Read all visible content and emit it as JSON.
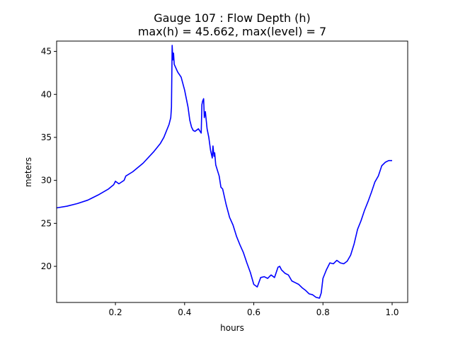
{
  "chart_data": {
    "type": "line",
    "title": "Gauge 107 : Flow Depth (h)",
    "subtitle": "max(h) =  45.662,    max(level) = 7",
    "xlabel": "hours",
    "ylabel": "meters",
    "xlim": [
      0.03,
      1.045
    ],
    "ylim": [
      15.8,
      46.2
    ],
    "xticks": [
      0.2,
      0.4,
      0.6,
      0.8,
      1.0
    ],
    "xtick_labels": [
      "0.2",
      "0.4",
      "0.6",
      "0.8",
      "1.0"
    ],
    "yticks": [
      20,
      25,
      30,
      35,
      40,
      45
    ],
    "ytick_labels": [
      "20",
      "25",
      "30",
      "35",
      "40",
      "45"
    ],
    "grid": false,
    "line_color": "#0000ff",
    "series": [
      {
        "x": [
          0.03,
          0.06,
          0.09,
          0.12,
          0.15,
          0.18,
          0.195,
          0.2,
          0.21,
          0.225,
          0.23,
          0.25,
          0.28,
          0.31,
          0.33,
          0.34,
          0.35,
          0.355,
          0.36,
          0.362,
          0.364,
          0.366,
          0.368,
          0.37,
          0.38,
          0.39,
          0.4,
          0.41,
          0.415,
          0.42,
          0.425,
          0.43,
          0.44,
          0.448,
          0.45,
          0.452,
          0.455,
          0.457,
          0.46,
          0.465,
          0.47,
          0.475,
          0.48,
          0.482,
          0.485,
          0.487,
          0.49,
          0.5,
          0.505,
          0.51,
          0.52,
          0.53,
          0.54,
          0.55,
          0.56,
          0.57,
          0.58,
          0.59,
          0.6,
          0.61,
          0.62,
          0.63,
          0.64,
          0.65,
          0.66,
          0.67,
          0.675,
          0.68,
          0.69,
          0.7,
          0.71,
          0.72,
          0.73,
          0.74,
          0.75,
          0.76,
          0.77,
          0.78,
          0.79,
          0.795,
          0.8,
          0.81,
          0.82,
          0.83,
          0.84,
          0.85,
          0.86,
          0.87,
          0.88,
          0.89,
          0.9,
          0.91,
          0.92,
          0.93,
          0.94,
          0.95,
          0.96,
          0.97,
          0.98,
          0.99,
          1.0
        ],
        "y": [
          26.8,
          27.0,
          27.3,
          27.7,
          28.3,
          29.0,
          29.5,
          29.9,
          29.6,
          30.0,
          30.5,
          31.0,
          32.0,
          33.3,
          34.3,
          35.0,
          36.0,
          36.5,
          37.3,
          38.5,
          45.7,
          44.0,
          44.8,
          43.5,
          42.6,
          42.0,
          40.5,
          38.5,
          37.0,
          36.2,
          35.8,
          35.7,
          36.0,
          35.5,
          38.8,
          39.2,
          39.5,
          37.3,
          38.0,
          36.0,
          35.0,
          33.5,
          32.6,
          34.0,
          32.8,
          33.2,
          31.8,
          30.5,
          29.2,
          29.0,
          27.2,
          25.7,
          24.8,
          23.5,
          22.5,
          21.6,
          20.4,
          19.3,
          17.9,
          17.6,
          18.7,
          18.8,
          18.6,
          19.0,
          18.7,
          19.9,
          20.0,
          19.6,
          19.2,
          19.0,
          18.3,
          18.1,
          17.9,
          17.5,
          17.2,
          16.8,
          16.7,
          16.4,
          16.3,
          16.9,
          18.6,
          19.6,
          20.4,
          20.3,
          20.7,
          20.4,
          20.3,
          20.6,
          21.3,
          22.6,
          24.3,
          25.3,
          26.5,
          27.5,
          28.6,
          29.8,
          30.5,
          31.7,
          32.1,
          32.3,
          32.3
        ]
      }
    ]
  }
}
